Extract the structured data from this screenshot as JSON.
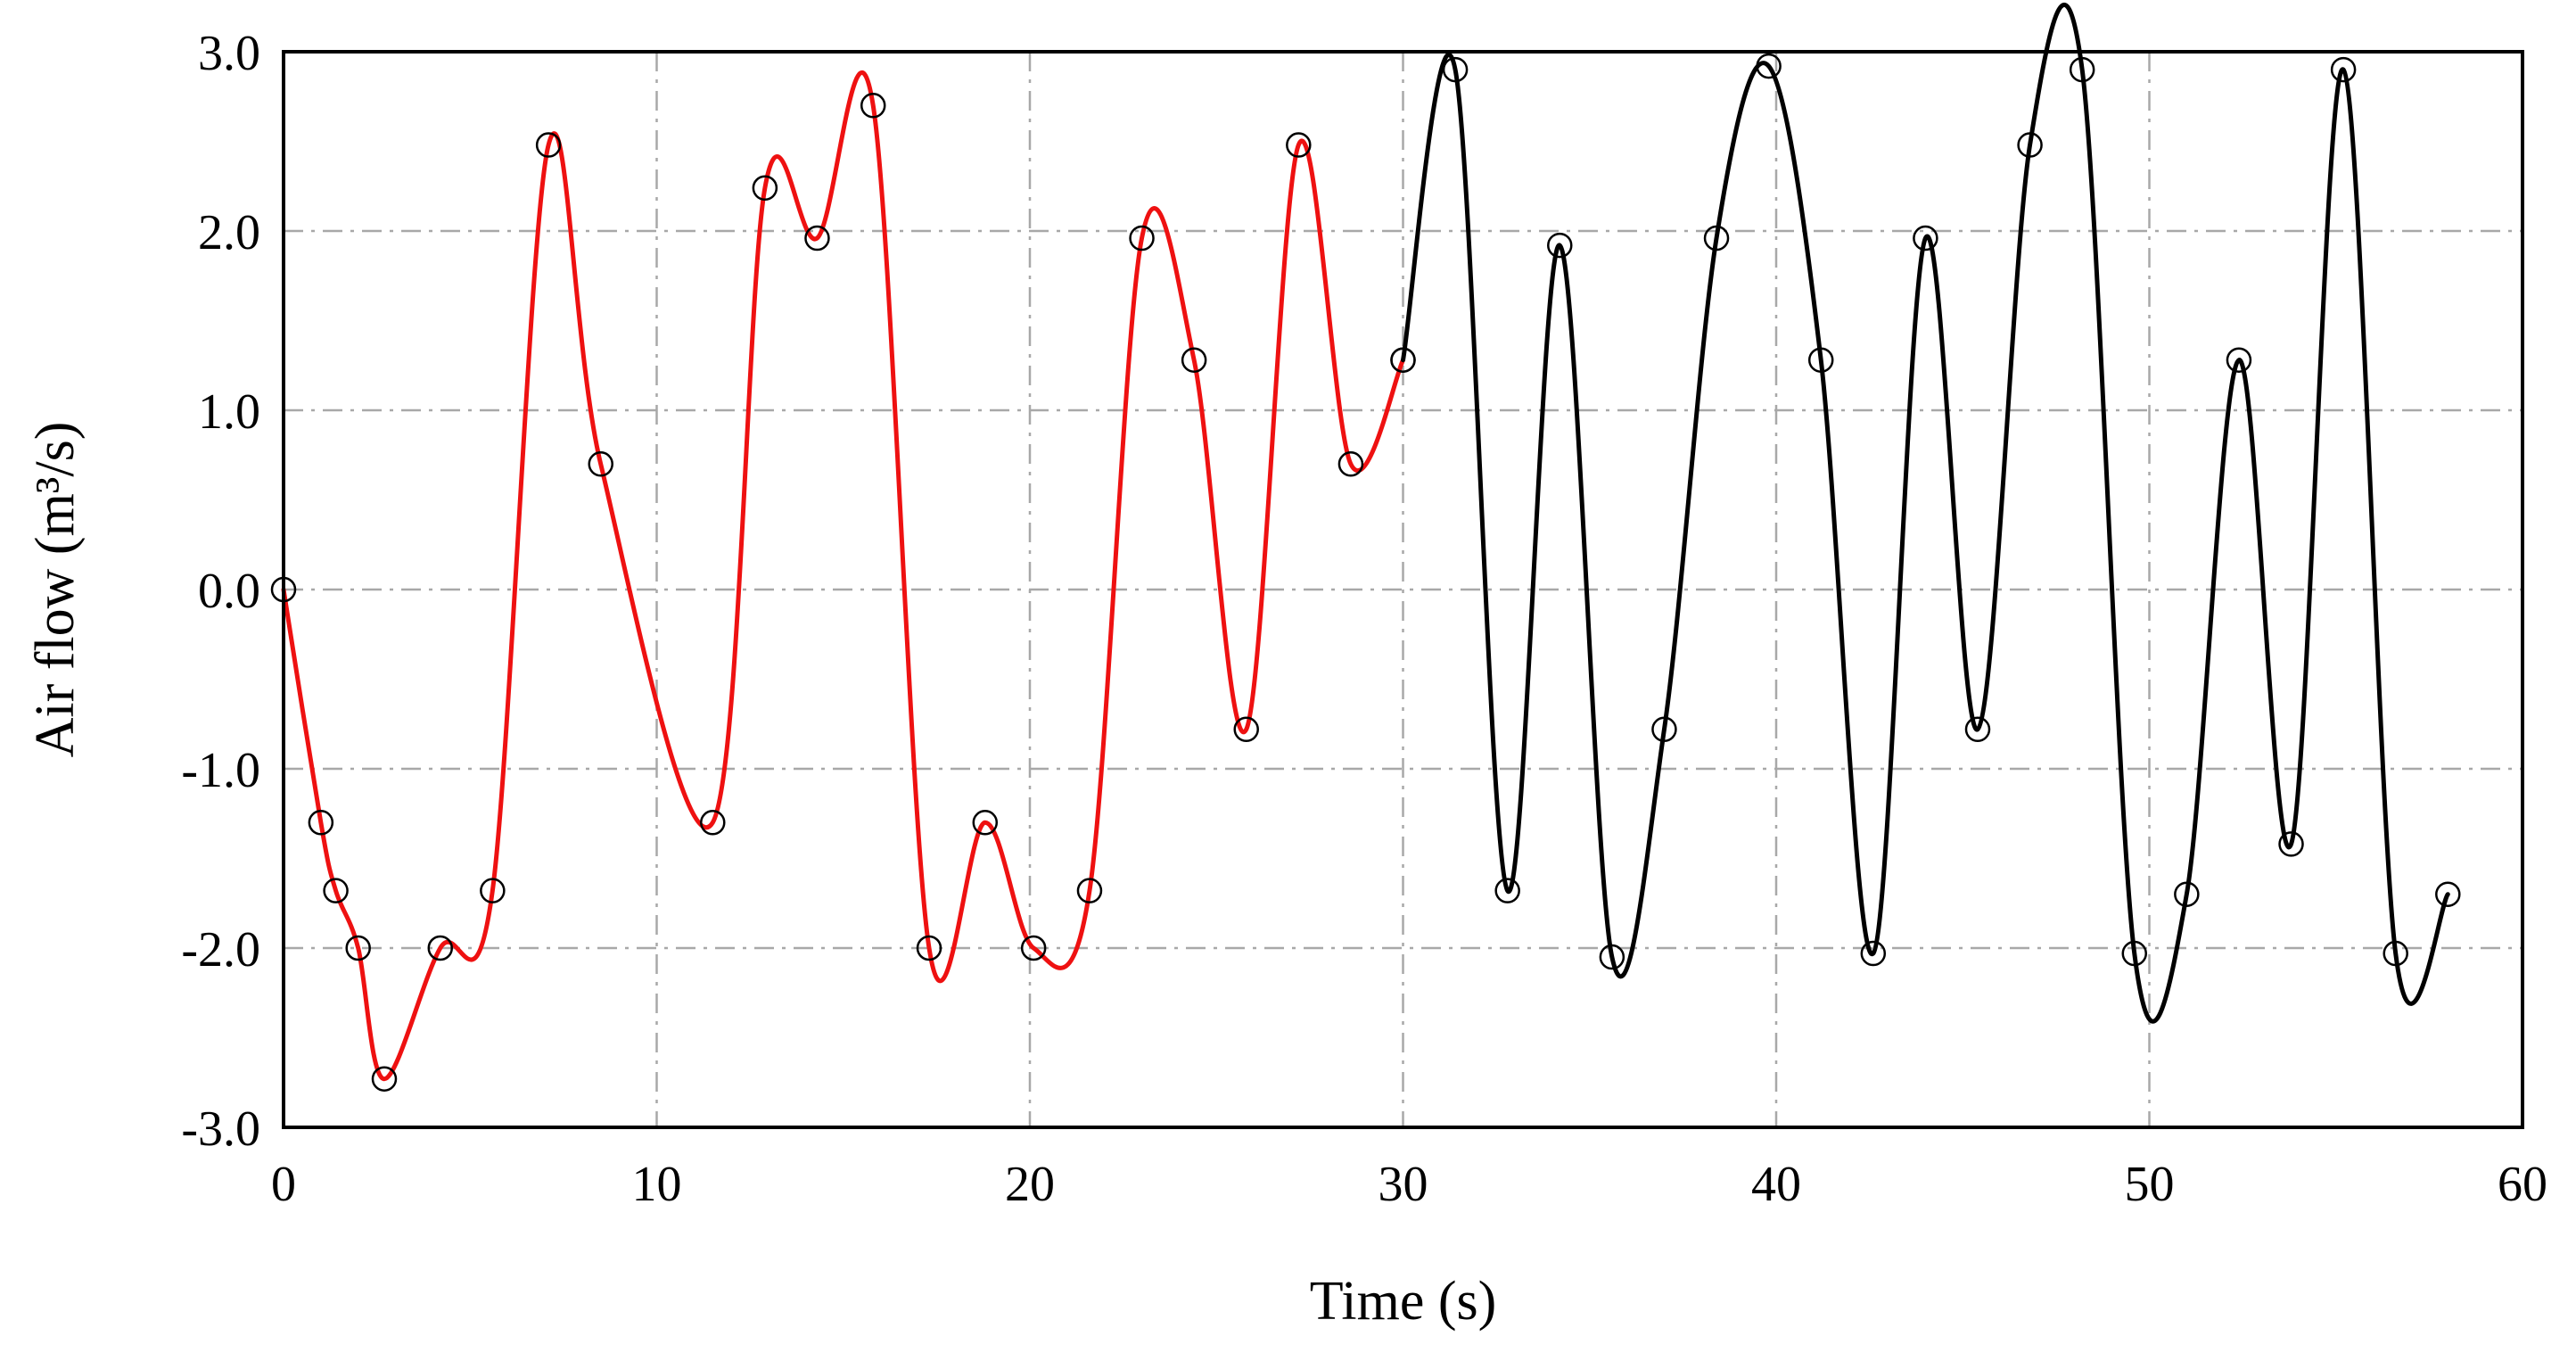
{
  "chart_data": {
    "type": "line",
    "title": "",
    "xlabel": "Time (s)",
    "ylabel": "Air flow (m³/s)",
    "xlim": [
      0,
      60
    ],
    "ylim": [
      -3.0,
      3.0
    ],
    "x_ticks": [
      0,
      10,
      20,
      30,
      40,
      50,
      60
    ],
    "x_tick_labels": [
      "0",
      "10",
      "20",
      "30",
      "40",
      "50",
      "60"
    ],
    "y_ticks": [
      -3,
      -2,
      -1,
      0,
      1,
      2,
      3
    ],
    "y_tick_labels": [
      "-3.0",
      "-2.0",
      "-1.0",
      "0.0",
      "1.0",
      "2.0",
      "3.0"
    ],
    "grid": true,
    "grid_style": "dash-dot",
    "legend": false,
    "series": [
      {
        "color": "#ee1111",
        "marker": "open-circle",
        "smooth": true,
        "points": [
          [
            0.0,
            0.0
          ],
          [
            1.0,
            -1.3
          ],
          [
            1.4,
            -1.68
          ],
          [
            2.0,
            -2.0
          ],
          [
            2.7,
            -2.73
          ],
          [
            4.2,
            -2.0
          ],
          [
            5.6,
            -1.68
          ],
          [
            7.1,
            2.48
          ],
          [
            8.5,
            0.7
          ],
          [
            11.5,
            -1.3
          ],
          [
            12.9,
            2.24
          ],
          [
            14.3,
            1.96
          ],
          [
            15.8,
            2.7
          ],
          [
            17.3,
            -2.0
          ],
          [
            18.8,
            -1.3
          ],
          [
            20.1,
            -2.0
          ],
          [
            21.6,
            -1.68
          ],
          [
            23.0,
            1.96
          ],
          [
            24.4,
            1.28
          ],
          [
            25.8,
            -0.78
          ],
          [
            27.2,
            2.48
          ],
          [
            28.6,
            0.7
          ],
          [
            30.0,
            1.28
          ]
        ]
      },
      {
        "color": "#000000",
        "marker": "open-circle",
        "smooth": true,
        "points": [
          [
            30.0,
            1.28
          ],
          [
            31.4,
            2.9
          ],
          [
            32.8,
            -1.68
          ],
          [
            34.2,
            1.92
          ],
          [
            35.6,
            -2.05
          ],
          [
            37.0,
            -0.78
          ],
          [
            38.4,
            1.96
          ],
          [
            39.8,
            2.92
          ],
          [
            41.2,
            1.28
          ],
          [
            42.6,
            -2.03
          ],
          [
            44.0,
            1.96
          ],
          [
            45.4,
            -0.78
          ],
          [
            46.8,
            2.48
          ],
          [
            48.2,
            2.9
          ],
          [
            49.6,
            -2.03
          ],
          [
            51.0,
            -1.7
          ],
          [
            52.4,
            1.28
          ],
          [
            53.8,
            -1.42
          ],
          [
            55.2,
            2.9
          ],
          [
            56.6,
            -2.03
          ],
          [
            58.0,
            -1.7
          ]
        ]
      }
    ]
  }
}
